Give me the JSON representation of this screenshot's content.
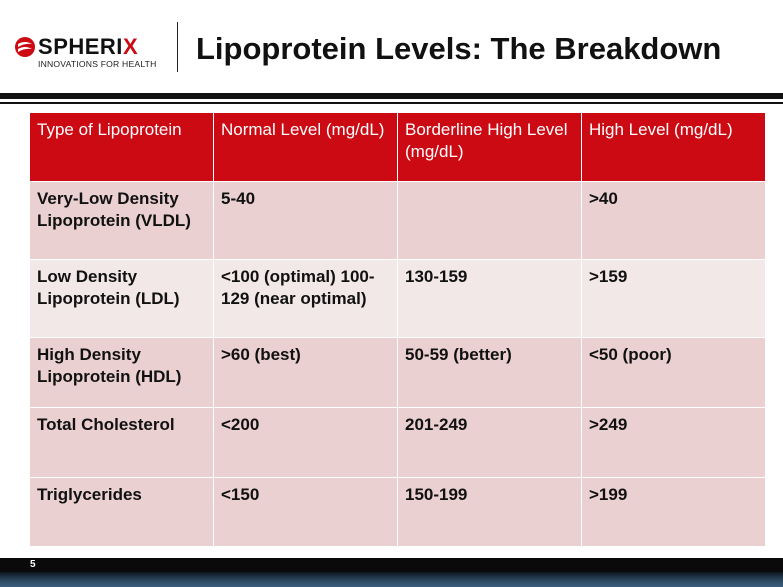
{
  "header": {
    "logo_name_first": "S",
    "logo_name_rest": "PHERI",
    "logo_name_last": "X",
    "logo_tagline": "INNOVATIONS FOR HEALTH",
    "title": "Lipoprotein Levels: The Breakdown"
  },
  "table": {
    "headers": [
      "Type of Lipoprotein",
      "Normal Level (mg/dL)",
      "Borderline High Level (mg/dL)",
      "High Level (mg/dL)"
    ],
    "rows": [
      [
        "Very-Low Density Lipoprotein (VLDL)",
        "5-40",
        "",
        ">40"
      ],
      [
        "Low Density Lipoprotein (LDL)",
        "<100 (optimal) 100-129 (near optimal)",
        "130-159",
        ">159"
      ],
      [
        "High Density Lipoprotein (HDL)",
        ">60 (best)",
        "50-59 (better)",
        "<50 (poor)"
      ],
      [
        "Total Cholesterol",
        "<200",
        "201-249",
        ">249"
      ],
      [
        "Triglycerides",
        "<150",
        "150-199",
        ">199"
      ]
    ]
  },
  "footer": {
    "page_number": "5"
  },
  "colors": {
    "brand_red": "#cc0a14",
    "row_dark": "#ead0d1",
    "row_light": "#f3e8e8"
  },
  "icons": {
    "logo_mark": "spherix-sphere-icon"
  }
}
